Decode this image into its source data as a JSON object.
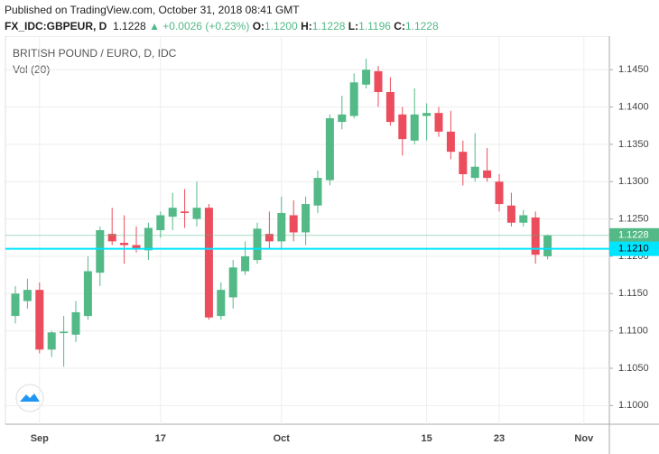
{
  "header": {
    "published": "Published on TradingView.com, October 31, 2018 08:41 GMT",
    "symbol": "FX_IDC:GBPEUR, D",
    "last": "1.1228",
    "change": "▲ +0.0026 (+0.23%)",
    "o_label": "O:",
    "o": "1.1200",
    "h_label": "H:",
    "h": "1.1228",
    "l_label": "L:",
    "l": "1.1196",
    "c_label": "C:",
    "c": "1.1228"
  },
  "chart_data": {
    "type": "candlestick",
    "title": "BRITISH POUND / EURO, D, IDC",
    "subtitle": "Vol (20)",
    "categories": [
      null,
      null,
      "Sep",
      null,
      null,
      null,
      null,
      null,
      null,
      null,
      null,
      null,
      "17",
      null,
      null,
      null,
      null,
      null,
      null,
      null,
      null,
      null,
      "Oct",
      null,
      null,
      null,
      null,
      null,
      null,
      null,
      null,
      null,
      null,
      null,
      "15",
      null,
      null,
      null,
      null,
      null,
      "23",
      null,
      null,
      null,
      null,
      null,
      null,
      "Nov"
    ],
    "series": [
      {
        "name": "GBPEUR",
        "up_color": "#53b987",
        "down_color": "#eb4d5c",
        "open": [
          1.112,
          1.114,
          1.1155,
          1.1075,
          1.1097,
          1.1095,
          1.112,
          1.1178,
          1.123,
          1.1218,
          1.1215,
          1.1208,
          1.1235,
          1.1253,
          1.126,
          1.125,
          1.1265,
          1.112,
          1.1145,
          1.118,
          1.1195,
          1.123,
          1.122,
          1.1255,
          1.1232,
          1.1268,
          1.1302,
          1.138,
          1.1388,
          1.143,
          1.1448,
          1.142,
          1.139,
          1.1355,
          1.1388,
          1.1392,
          1.1367,
          1.134,
          1.1305,
          1.1315,
          1.13,
          1.1268,
          1.1245,
          1.1252,
          1.12,
          null
        ],
        "high": [
          1.116,
          1.117,
          1.1165,
          1.11,
          1.112,
          1.114,
          1.12,
          1.124,
          1.1265,
          1.1255,
          1.124,
          1.1245,
          1.126,
          1.1285,
          1.129,
          1.13,
          1.127,
          1.1165,
          1.1195,
          1.122,
          1.1245,
          1.126,
          1.128,
          1.1275,
          1.128,
          1.1315,
          1.139,
          1.1415,
          1.1445,
          1.1465,
          1.1455,
          1.144,
          1.14,
          1.1425,
          1.1405,
          1.14,
          1.1395,
          1.1355,
          1.1365,
          1.1345,
          1.131,
          1.1285,
          1.1262,
          1.126,
          1.1229,
          null
        ],
        "low": [
          1.111,
          1.113,
          1.107,
          1.1065,
          1.1052,
          1.1085,
          1.1115,
          1.116,
          1.1215,
          1.119,
          1.1205,
          1.1195,
          1.1225,
          1.1235,
          1.1238,
          1.124,
          1.1115,
          1.1115,
          1.113,
          1.1175,
          1.119,
          1.121,
          1.121,
          1.122,
          1.1215,
          1.1258,
          1.1295,
          1.137,
          1.1385,
          1.1425,
          1.14,
          1.1375,
          1.1335,
          1.135,
          1.1355,
          1.136,
          1.133,
          1.1295,
          1.13,
          1.13,
          1.126,
          1.124,
          1.124,
          1.119,
          1.1196,
          null
        ],
        "close": [
          1.115,
          1.1155,
          1.1075,
          1.1098,
          1.1099,
          1.1125,
          1.118,
          1.1235,
          1.122,
          1.1215,
          1.121,
          1.1238,
          1.1255,
          1.1265,
          1.1258,
          1.1265,
          1.1118,
          1.1155,
          1.1185,
          1.12,
          1.1237,
          1.122,
          1.1258,
          1.1232,
          1.127,
          1.1305,
          1.1385,
          1.139,
          1.1433,
          1.145,
          1.142,
          1.138,
          1.1357,
          1.139,
          1.1392,
          1.1367,
          1.134,
          1.131,
          1.132,
          1.1305,
          1.127,
          1.1245,
          1.1255,
          1.1202,
          1.1228,
          null
        ]
      }
    ],
    "ylim": [
      1.0975,
      1.1495
    ],
    "yticks": [
      {
        "value": 1.1,
        "label": "1.1000"
      },
      {
        "value": 1.105,
        "label": "1.1050"
      },
      {
        "value": 1.11,
        "label": "1.1100"
      },
      {
        "value": 1.115,
        "label": "1.1150"
      },
      {
        "value": 1.12,
        "label": "1.1200"
      },
      {
        "value": 1.125,
        "label": "1.1250"
      },
      {
        "value": 1.13,
        "label": "1.1300"
      },
      {
        "value": 1.135,
        "label": "1.1350"
      },
      {
        "value": 1.14,
        "label": "1.1400"
      },
      {
        "value": 1.145,
        "label": "1.1450"
      }
    ],
    "price_lines": [
      {
        "value": 1.1228,
        "label": "1.1228",
        "color": "#53b987"
      },
      {
        "value": 1.121,
        "label": "1.1210",
        "color": "#00e5ff"
      }
    ],
    "grid": true
  }
}
